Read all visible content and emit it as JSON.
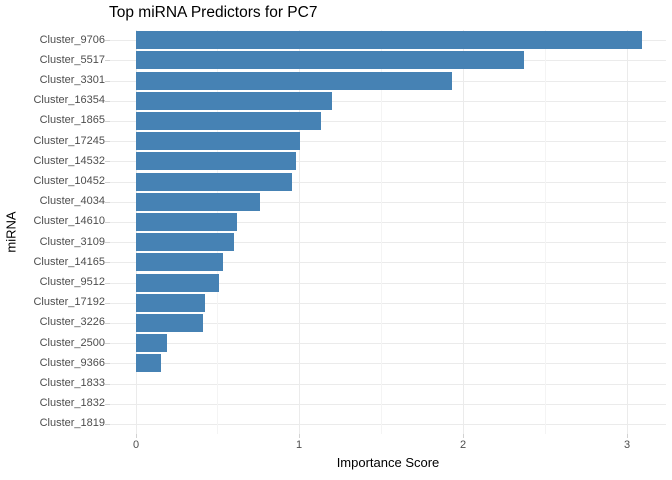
{
  "chart_data": {
    "type": "bar",
    "orientation": "horizontal",
    "title": "Top miRNA Predictors for PC7",
    "xlabel": "Importance Score",
    "ylabel": "miRNA",
    "categories": [
      "Cluster_9706",
      "Cluster_5517",
      "Cluster_3301",
      "Cluster_16354",
      "Cluster_1865",
      "Cluster_17245",
      "Cluster_14532",
      "Cluster_10452",
      "Cluster_4034",
      "Cluster_14610",
      "Cluster_3109",
      "Cluster_14165",
      "Cluster_9512",
      "Cluster_17192",
      "Cluster_3226",
      "Cluster_2500",
      "Cluster_9366",
      "Cluster_1833",
      "Cluster_1832",
      "Cluster_1819"
    ],
    "values": [
      3.09,
      2.37,
      1.93,
      1.2,
      1.13,
      1.0,
      0.98,
      0.95,
      0.76,
      0.62,
      0.6,
      0.53,
      0.51,
      0.42,
      0.41,
      0.19,
      0.15,
      0.0,
      0.0,
      0.0
    ],
    "x_ticks": [
      "0",
      "1",
      "2",
      "3"
    ],
    "x_tick_values": [
      0,
      1,
      2,
      3
    ],
    "x_minor_tick_values": [
      0.5,
      1.5,
      2.5
    ],
    "xlim": [
      0,
      3.2
    ],
    "grid": true,
    "legend": "none",
    "colors": {
      "bar_fill": "#4682b4",
      "grid_major": "#ebebeb",
      "grid_minor": "#f4f4f4",
      "tick_mark": "#d2d2d2",
      "tick_label_text": "#4d4d4d",
      "title_text": "#000000",
      "background": "#ffffff"
    }
  }
}
